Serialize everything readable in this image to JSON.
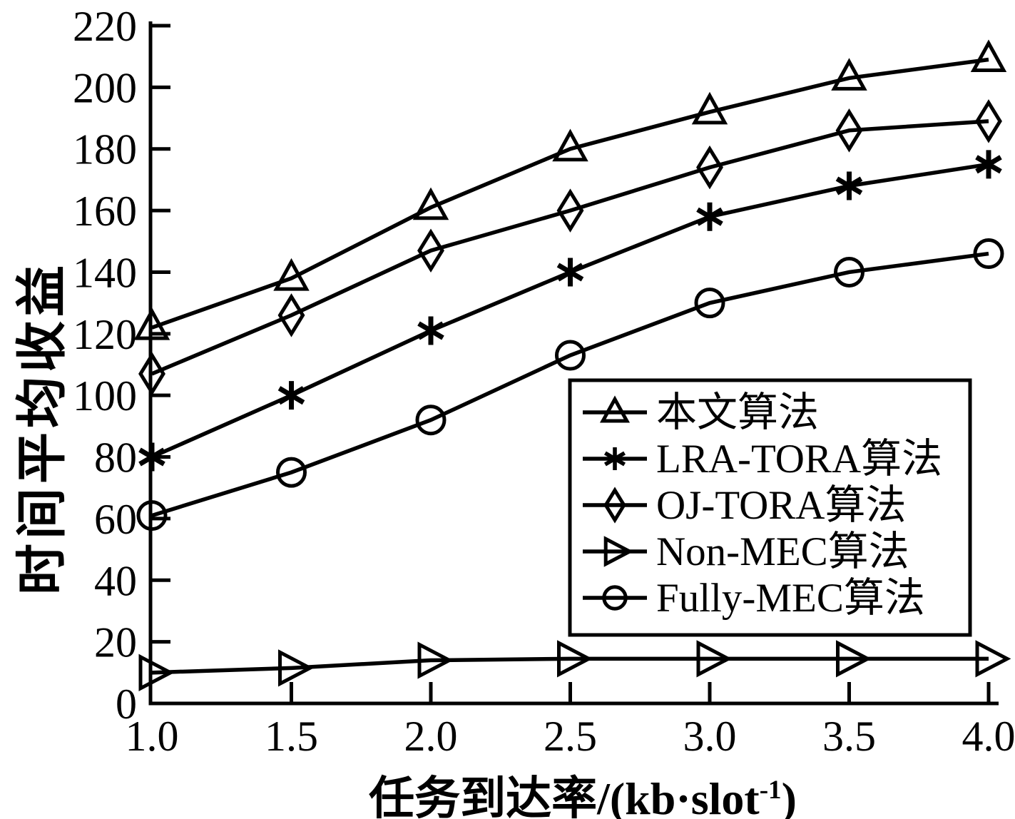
{
  "chart_data": {
    "type": "line",
    "title": "",
    "xlabel": "任务到达率/(kb·slot⁻¹)",
    "xlabel_parts": {
      "base": "任务到达率/(kb·slot",
      "sup": "-1",
      "close": ")"
    },
    "ylabel": "时间平均收益",
    "x": [
      1.0,
      1.5,
      2.0,
      2.5,
      3.0,
      3.5,
      4.0
    ],
    "x_tick_labels": [
      "1.0",
      "1.5",
      "2.0",
      "2.5",
      "3.0",
      "3.5",
      "4.0"
    ],
    "y_ticks": [
      0,
      20,
      40,
      60,
      80,
      100,
      120,
      140,
      160,
      180,
      200,
      220
    ],
    "xlim": [
      1.0,
      4.0
    ],
    "ylim": [
      0,
      220
    ],
    "grid": false,
    "legend_position": "middle-right-inside",
    "line_color": "#000000",
    "background_color": "#ffffff",
    "series": [
      {
        "name": "本文算法",
        "marker": "triangle-up",
        "values": [
          122,
          138,
          161,
          180,
          192,
          203,
          209
        ]
      },
      {
        "name": "LRA-TORA算法",
        "marker": "asterisk",
        "values": [
          80,
          100,
          121,
          140,
          158,
          168,
          175
        ]
      },
      {
        "name": "OJ-TORA算法",
        "marker": "diamond",
        "values": [
          107,
          126,
          147,
          160,
          174,
          186,
          189
        ]
      },
      {
        "name": "Non-MEC算法",
        "marker": "triangle-right",
        "values": [
          10,
          11.5,
          14,
          14.5,
          14.5,
          14.5,
          14.5
        ]
      },
      {
        "name": "Fully-MEC算法",
        "marker": "circle",
        "values": [
          61,
          75,
          92,
          113,
          130,
          140,
          146
        ]
      }
    ],
    "legend_order": [
      "本文算法",
      "LRA-TORA算法",
      "OJ-TORA算法",
      "Non-MEC算法",
      "Fully-MEC算法"
    ]
  }
}
